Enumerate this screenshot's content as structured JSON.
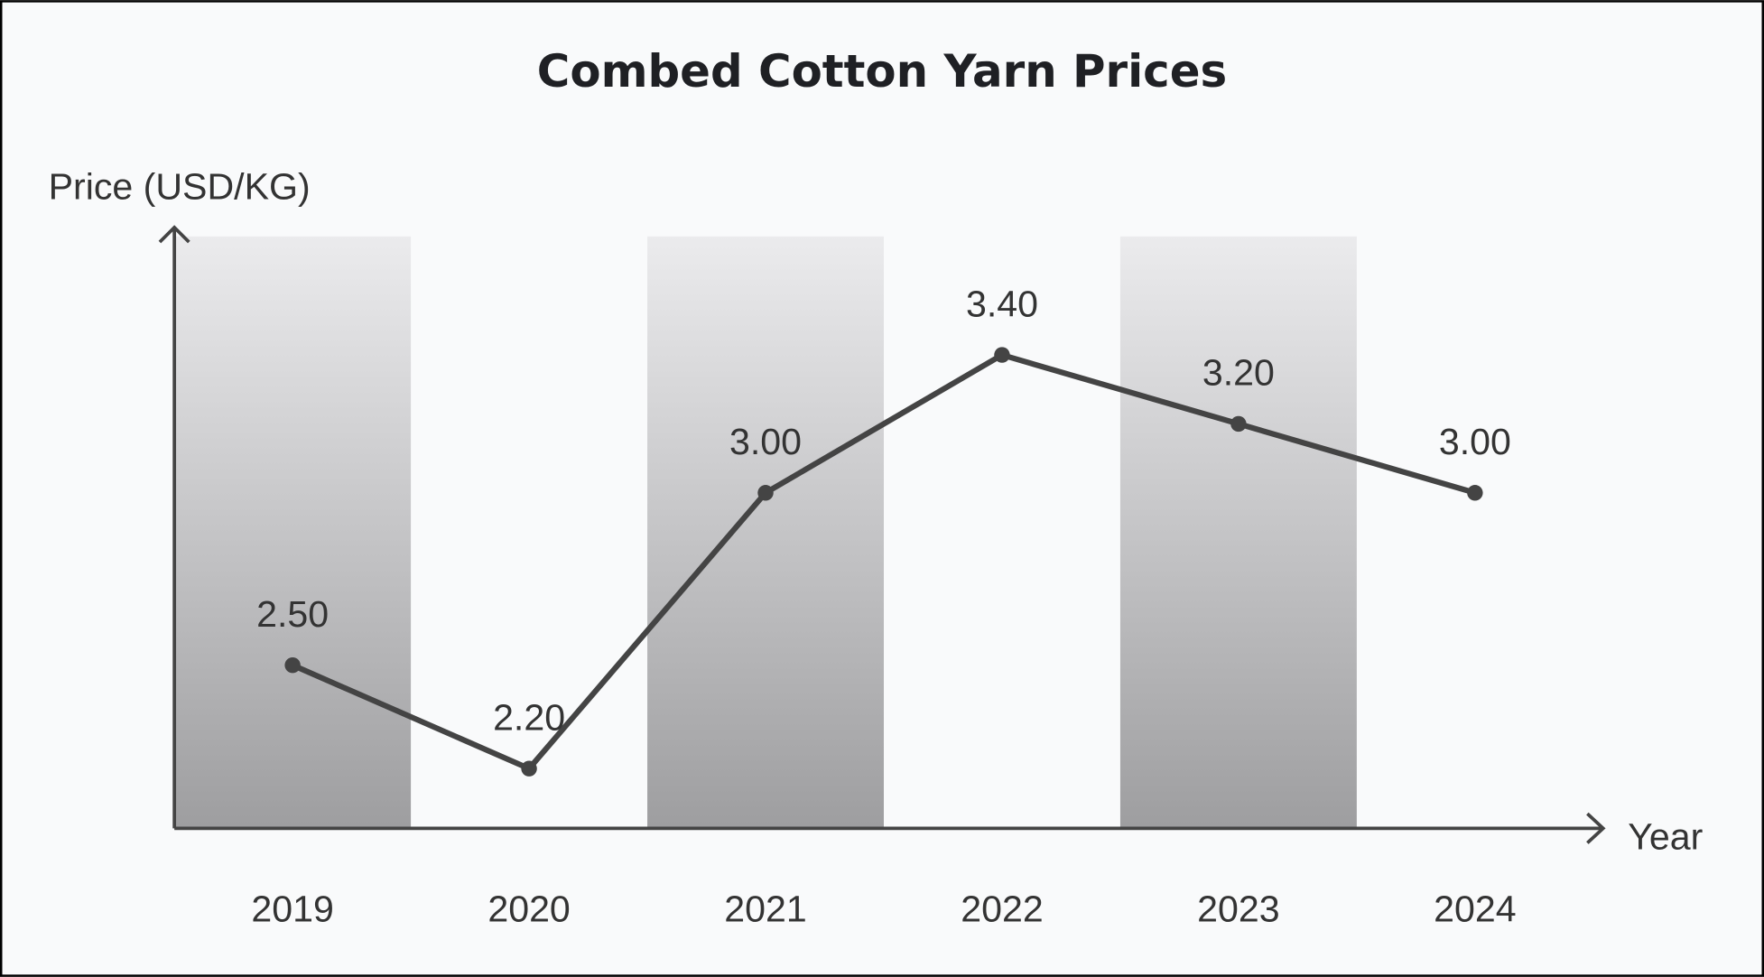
{
  "chart_data": {
    "type": "line",
    "title": "Combed Cotton Yarn Prices",
    "y_label": "Price (USD/KG)",
    "x_label": "Year",
    "categories": [
      "2019",
      "2020",
      "2021",
      "2022",
      "2023",
      "2024"
    ],
    "values": [
      2.5,
      2.2,
      3.0,
      3.4,
      3.2,
      3.0
    ],
    "value_labels": [
      "2.50",
      "2.20",
      "3.00",
      "3.40",
      "3.20",
      "3.00"
    ],
    "color": "#444444",
    "ylim": [
      2.03,
      3.76
    ]
  }
}
